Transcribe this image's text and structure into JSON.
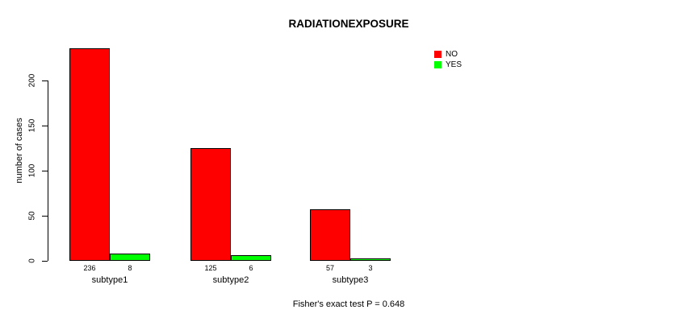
{
  "chart_data": {
    "type": "bar",
    "title": "RADIATIONEXPOSURE",
    "xlabel": "",
    "ylabel": "number of cases",
    "categories": [
      "subtype1",
      "subtype2",
      "subtype3"
    ],
    "series": [
      {
        "name": "NO",
        "color": "#FF0000",
        "values": [
          236,
          125,
          57
        ]
      },
      {
        "name": "YES",
        "color": "#00FF00",
        "values": [
          8,
          6,
          3
        ]
      }
    ],
    "bar_value_labels": [
      [
        "236",
        "8"
      ],
      [
        "125",
        "6"
      ],
      [
        "57",
        "3"
      ]
    ],
    "ylim": [
      0,
      236
    ],
    "yticks": [
      0,
      50,
      100,
      150,
      200
    ],
    "grid": false,
    "legend_position": "top-right",
    "caption": "Fisher's exact test P = 0.648"
  },
  "colors": {
    "axis": "#000000",
    "text": "#000000",
    "background": "#FFFFFF",
    "bar_no": "#FF0000",
    "bar_yes": "#00FF00"
  }
}
